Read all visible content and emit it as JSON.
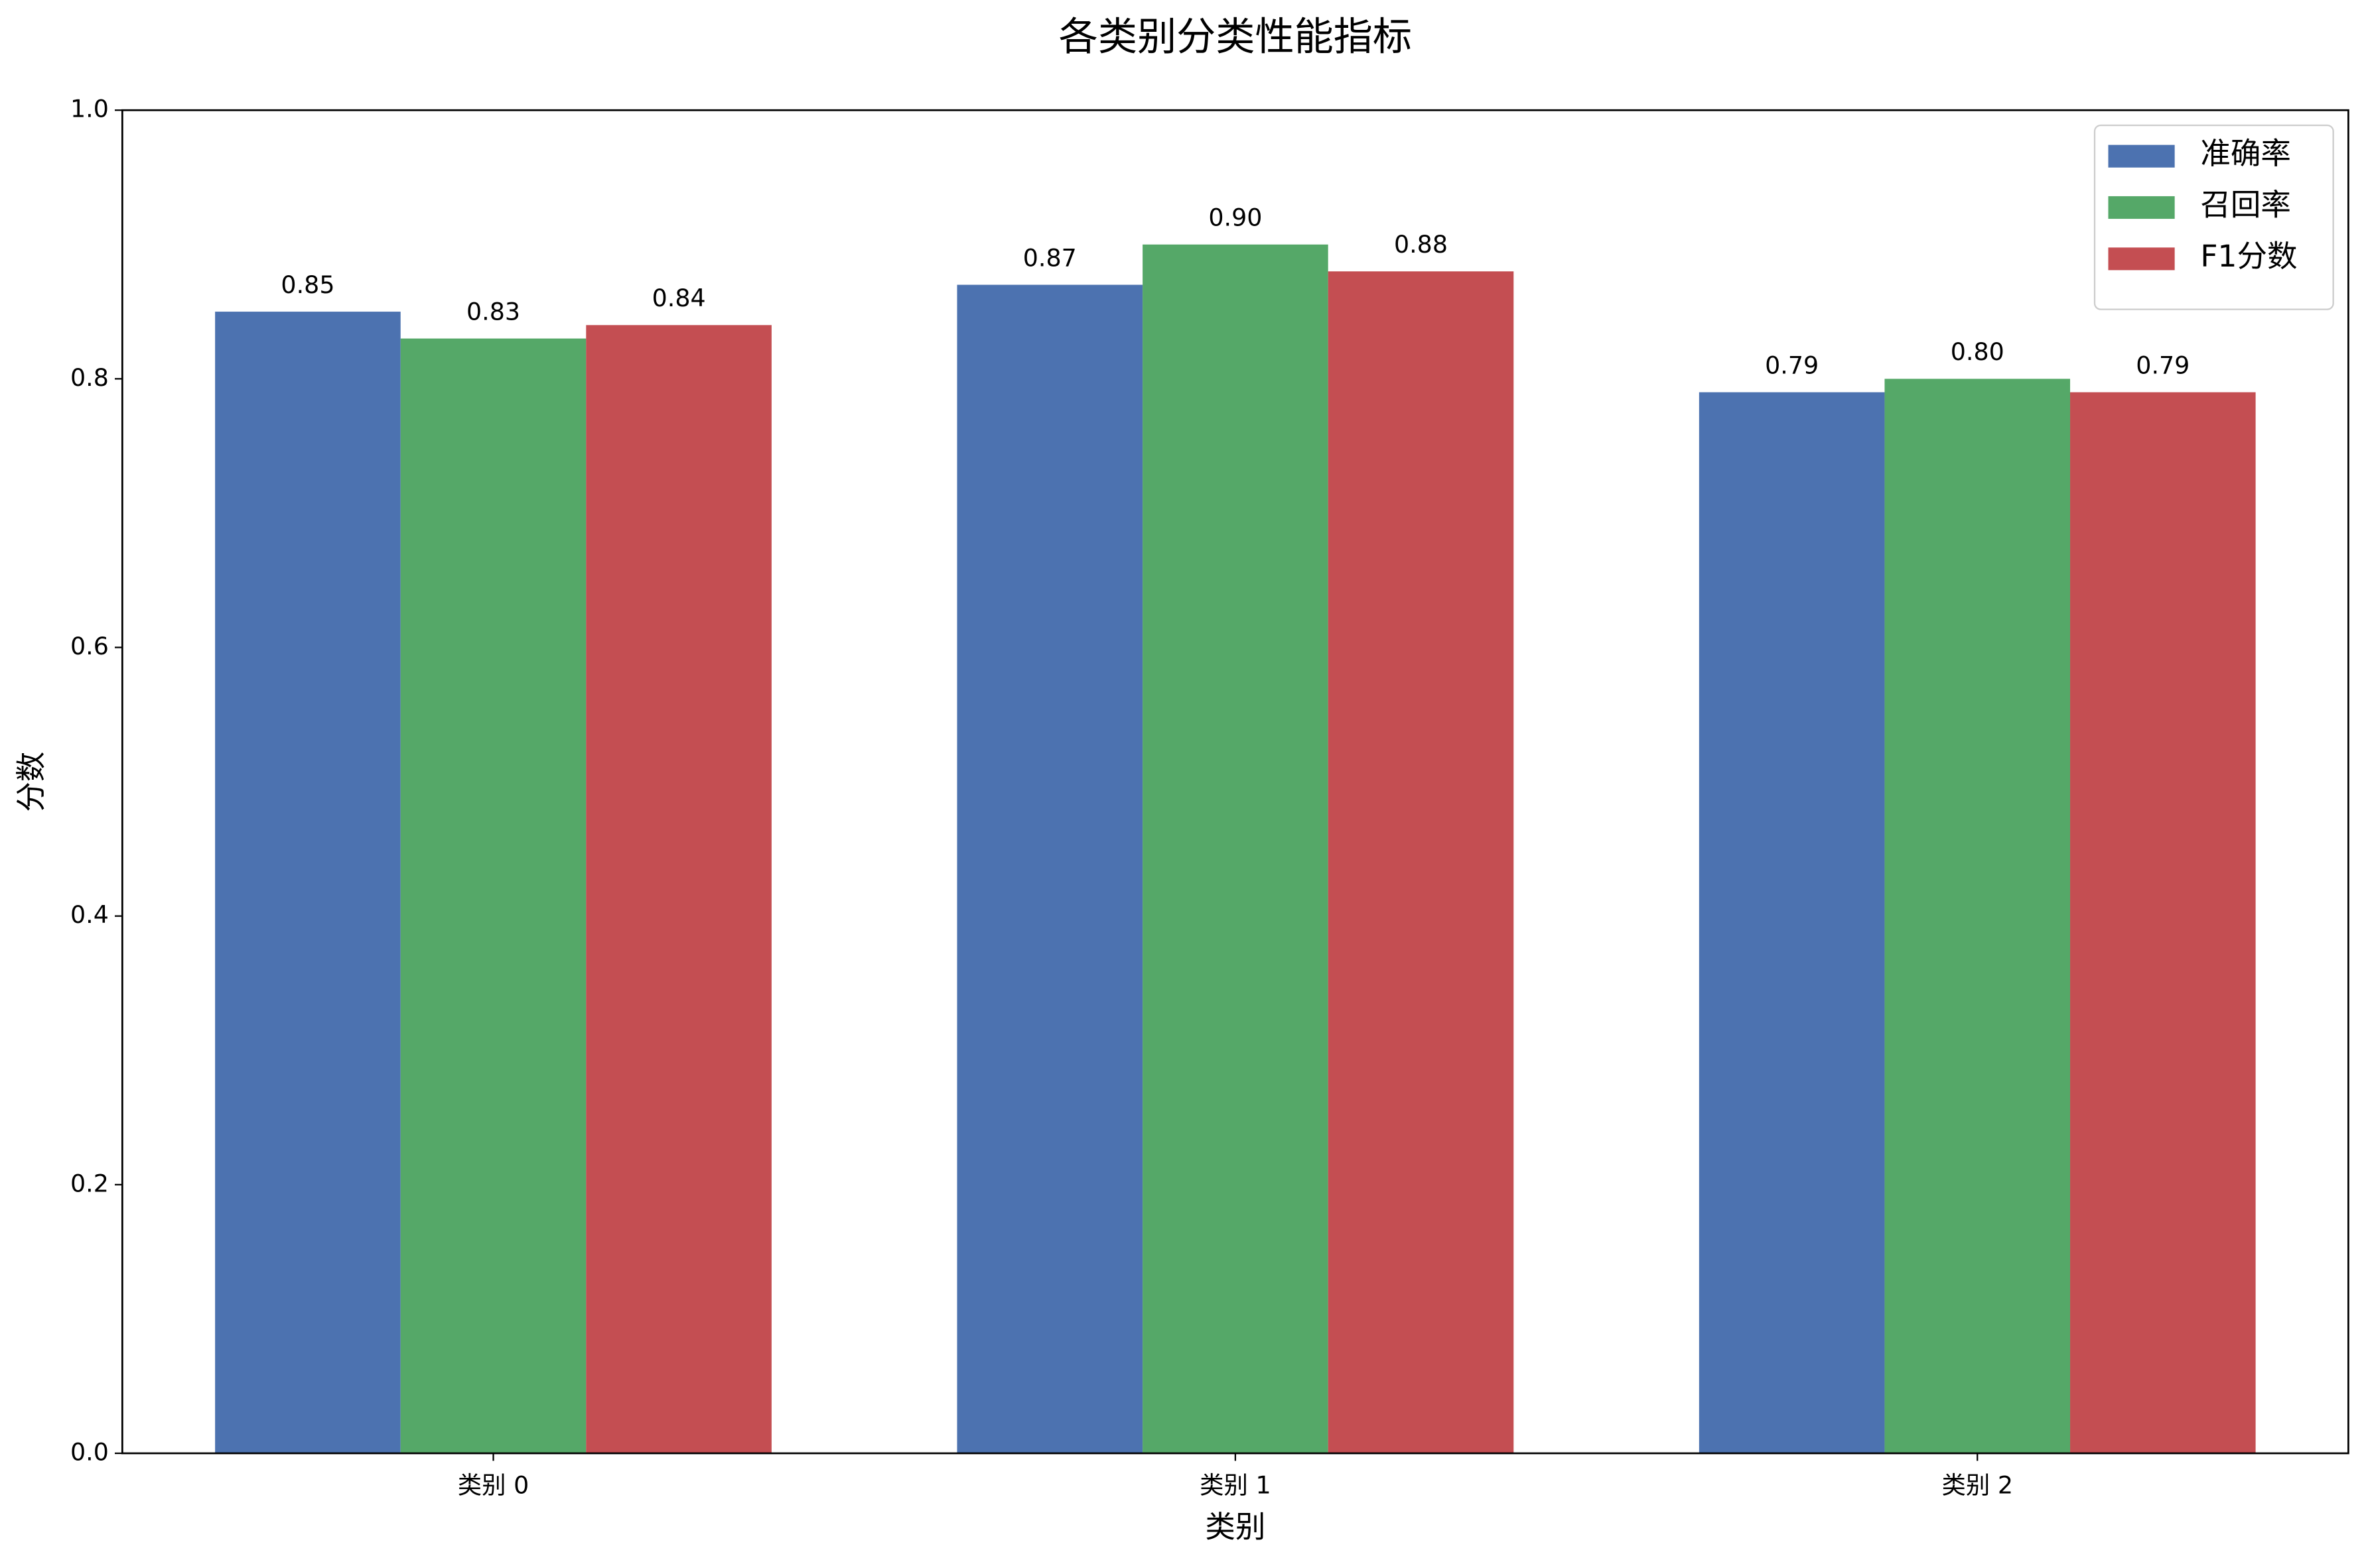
{
  "chart_data": {
    "type": "bar",
    "title": "各类别分类性能指标",
    "xlabel": "类别",
    "ylabel": "分数",
    "categories": [
      "类别 0",
      "类别 1",
      "类别 2"
    ],
    "series": [
      {
        "name": "准确率",
        "color": "#4c72b0",
        "values": [
          0.85,
          0.87,
          0.79
        ],
        "value_labels": [
          "0.85",
          "0.87",
          "0.79"
        ]
      },
      {
        "name": "召回率",
        "color": "#55a868",
        "values": [
          0.83,
          0.9,
          0.8
        ],
        "value_labels": [
          "0.83",
          "0.90",
          "0.80"
        ]
      },
      {
        "name": "F1分数",
        "color": "#c44e52",
        "values": [
          0.84,
          0.88,
          0.79
        ],
        "value_labels": [
          "0.84",
          "0.88",
          "0.79"
        ]
      }
    ],
    "ylim": [
      0,
      1
    ],
    "yticks": [
      {
        "value": 0,
        "label": "0.0"
      },
      0.2,
      0.4,
      0.6,
      0.8,
      {
        "value": 1,
        "label": "1.0"
      }
    ],
    "legend": "upper right"
  }
}
